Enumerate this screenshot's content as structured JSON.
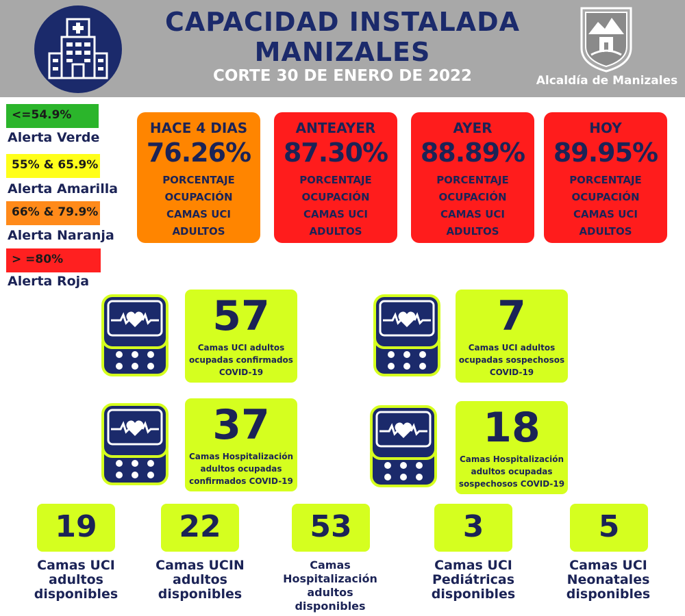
{
  "header": {
    "title_line1": "CAPACIDAD INSTALADA",
    "title_line2": "MANIZALES",
    "subtitle": "CORTE 30 DE ENERO DE 2022",
    "org": "Alcaldía de Manizales"
  },
  "legend": [
    {
      "range": "<=54.9%",
      "label": "Alerta Verde",
      "color": "#2bb52b"
    },
    {
      "range": "55% & 65.9%",
      "label": "Alerta Amarilla",
      "color": "#ffff1a"
    },
    {
      "range": "66% & 79.9%",
      "label": "Alerta Naranja",
      "color": "#ff8a1a"
    },
    {
      "range": "> =80%",
      "label": "Alerta Roja",
      "color": "#ff2020"
    }
  ],
  "cards": [
    {
      "period": "HACE 4 DIAS",
      "value": "76.26%",
      "desc1": "PORCENTAJE",
      "desc2": "OCUPACIÓN",
      "desc3": "CAMAS UCI",
      "desc4": "ADULTOS",
      "color": "#ff8500"
    },
    {
      "period": "ANTEAYER",
      "value": "87.30%",
      "desc1": "PORCENTAJE",
      "desc2": "OCUPACIÓN",
      "desc3": "CAMAS UCI",
      "desc4": "ADULTOS",
      "color": "#ff1c1c"
    },
    {
      "period": "AYER",
      "value": "88.89%",
      "desc1": "PORCENTAJE",
      "desc2": "OCUPACIÓN",
      "desc3": "CAMAS UCI",
      "desc4": "ADULTOS",
      "color": "#ff1c1c"
    },
    {
      "period": "HOY",
      "value": "89.95%",
      "desc1": "PORCENTAJE",
      "desc2": "OCUPACIÓN",
      "desc3": "CAMAS UCI",
      "desc4": "ADULTOS",
      "color": "#ff1c1c"
    }
  ],
  "stats": [
    {
      "value": "57",
      "line1": "Camas UCI adultos",
      "line2": "ocupadas confirmados",
      "line3": "COVID-19"
    },
    {
      "value": "7",
      "line1": "Camas UCI adultos",
      "line2": "ocupadas sospechosos",
      "line3": "COVID-19"
    },
    {
      "value": "37",
      "line1": "Camas  Hospitalización",
      "line2": "adultos ocupadas",
      "line3": "confirmados COVID-19"
    },
    {
      "value": "18",
      "line1": "Camas  Hospitalización",
      "line2": "adultos ocupadas",
      "line3": "sospechosos COVID-19"
    }
  ],
  "available": [
    {
      "value": "19",
      "line1": "Camas UCI",
      "line2": "adultos",
      "line3": "disponibles",
      "line4": ""
    },
    {
      "value": "22",
      "line1": "Camas UCIN",
      "line2": "adultos",
      "line3": "disponibles",
      "line4": ""
    },
    {
      "value": "53",
      "line1": "Camas",
      "line2": "Hospitalización",
      "line3": "adultos",
      "line4": "disponibles"
    },
    {
      "value": "3",
      "line1": "Camas  UCI",
      "line2": "Pediátricas",
      "line3": "disponibles",
      "line4": ""
    },
    {
      "value": "5",
      "line1": "Camas  UCI",
      "line2": "Neonatales",
      "line3": "disponibles",
      "line4": ""
    }
  ],
  "icons": {
    "hospital": "hospital-icon",
    "monitor": "heart-monitor-icon",
    "logo": "manizales-coat-of-arms"
  },
  "colors": {
    "navy": "#1b2a6b",
    "lime": "#d5ff1f",
    "header_gray": "#a8a8a8"
  }
}
